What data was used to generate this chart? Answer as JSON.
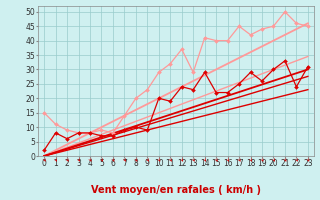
{
  "xlabel": "Vent moyen/en rafales ( km/h )",
  "bg_color": "#cff0f0",
  "grid_color": "#99cccc",
  "x_ticks": [
    0,
    1,
    2,
    3,
    4,
    5,
    6,
    7,
    8,
    9,
    10,
    11,
    12,
    13,
    14,
    15,
    16,
    17,
    18,
    19,
    20,
    21,
    22,
    23
  ],
  "y_ticks": [
    0,
    5,
    10,
    15,
    20,
    25,
    30,
    35,
    40,
    45,
    50
  ],
  "xlim": [
    -0.5,
    23.5
  ],
  "ylim": [
    0,
    52
  ],
  "series": [
    {
      "x": [
        0,
        1,
        2,
        3,
        4,
        5,
        6,
        7,
        8,
        9,
        10,
        11,
        12,
        13,
        14,
        15,
        16,
        17,
        18,
        19,
        20,
        21,
        22,
        23
      ],
      "y": [
        15,
        11,
        9,
        8,
        8,
        9,
        8,
        14,
        20,
        23,
        29,
        32,
        37,
        29,
        41,
        40,
        40,
        45,
        42,
        44,
        45,
        50,
        46,
        45
      ],
      "color": "#ff9999",
      "lw": 0.9,
      "marker": "D",
      "ms": 2.0,
      "zorder": 4
    },
    {
      "x": [
        0,
        23
      ],
      "y": [
        0,
        46
      ],
      "color": "#ff9999",
      "lw": 1.3,
      "marker": null,
      "ms": 0,
      "zorder": 2
    },
    {
      "x": [
        0,
        23
      ],
      "y": [
        0,
        34.5
      ],
      "color": "#ff9999",
      "lw": 1.0,
      "marker": null,
      "ms": 0,
      "zorder": 2
    },
    {
      "x": [
        0,
        1,
        2,
        3,
        4,
        5,
        6,
        7,
        8,
        9,
        10,
        11,
        12,
        13,
        14,
        15,
        16,
        17,
        18,
        19,
        20,
        21,
        22,
        23
      ],
      "y": [
        2,
        8,
        6,
        8,
        8,
        7,
        7,
        9,
        10,
        9,
        20,
        19,
        24,
        23,
        29,
        22,
        22,
        25,
        29,
        26,
        30,
        33,
        24,
        31
      ],
      "color": "#dd0000",
      "lw": 0.9,
      "marker": "D",
      "ms": 2.0,
      "zorder": 5
    },
    {
      "x": [
        0,
        23
      ],
      "y": [
        0,
        30
      ],
      "color": "#dd0000",
      "lw": 1.3,
      "marker": null,
      "ms": 0,
      "zorder": 3
    },
    {
      "x": [
        0,
        23
      ],
      "y": [
        0,
        27.6
      ],
      "color": "#dd0000",
      "lw": 1.0,
      "marker": null,
      "ms": 0,
      "zorder": 3
    },
    {
      "x": [
        0,
        23
      ],
      "y": [
        0,
        23
      ],
      "color": "#dd0000",
      "lw": 1.0,
      "marker": null,
      "ms": 0,
      "zorder": 3
    }
  ],
  "arrow_color": "#cc0000",
  "xlabel_color": "#cc0000",
  "xlabel_fontsize": 7,
  "tick_fontsize": 5.5,
  "figsize": [
    3.2,
    2.0
  ],
  "dpi": 100
}
